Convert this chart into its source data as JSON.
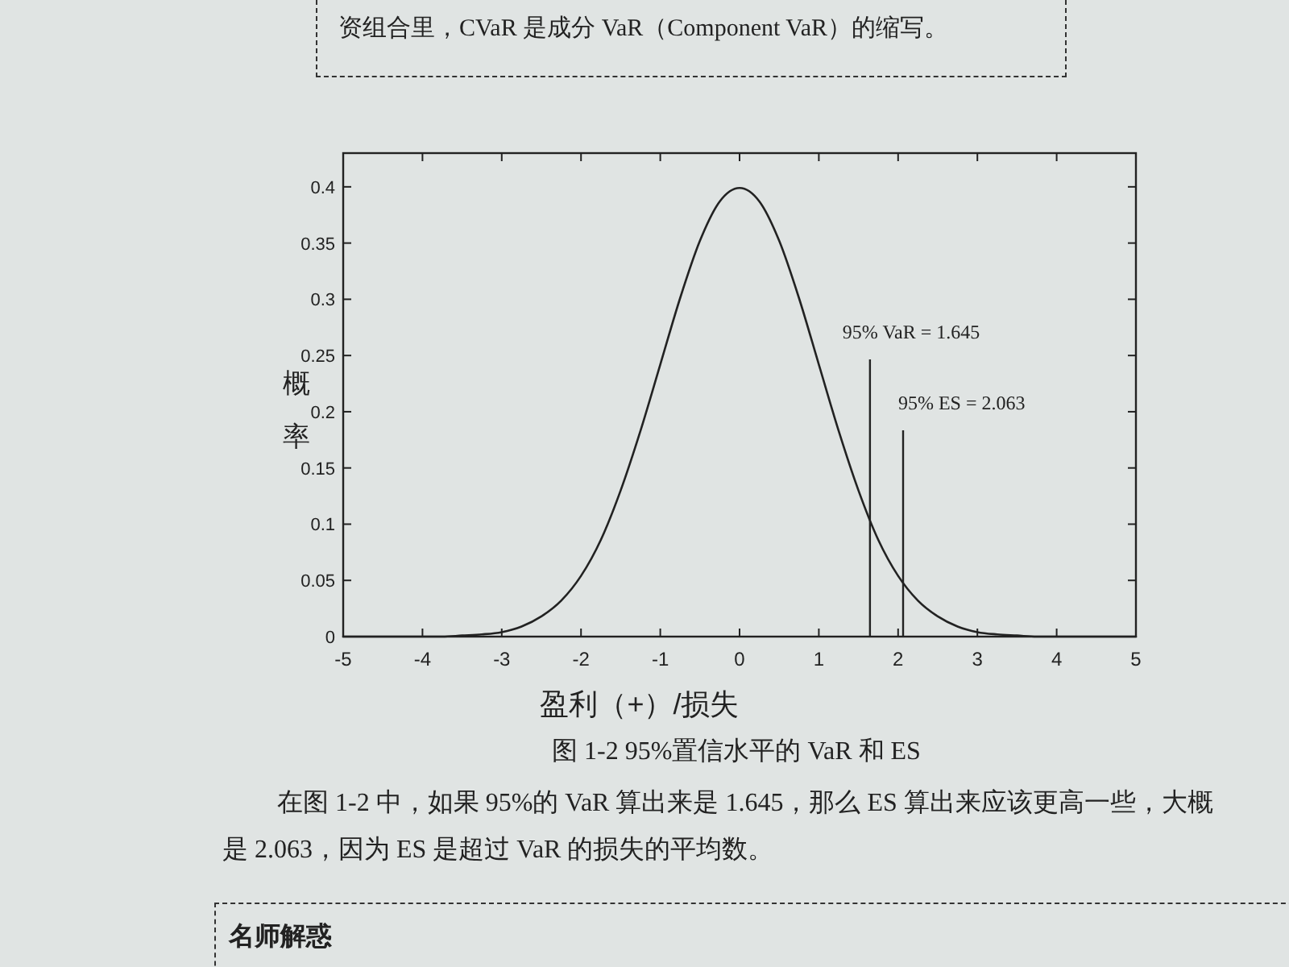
{
  "chart_data": {
    "type": "line",
    "title": "图 1-2 95%置信水平的 VaR 和 ES",
    "xlabel": "盈利（+）/损失",
    "ylabel": "概率",
    "series": [
      {
        "color": "#222222",
        "x": [
          -5,
          -4.75,
          -4.5,
          -4.25,
          -4,
          -3.75,
          -3.5,
          -3.25,
          -3,
          -2.75,
          -2.5,
          -2.25,
          -2,
          -1.75,
          -1.5,
          -1.25,
          -1,
          -0.75,
          -0.5,
          -0.25,
          0,
          0.25,
          0.5,
          0.75,
          1,
          1.25,
          1.5,
          1.75,
          2,
          2.25,
          2.5,
          2.75,
          3,
          3.25,
          3.5,
          3.75,
          4,
          4.25,
          4.5,
          4.75,
          5
        ],
        "values": [
          0,
          0,
          0,
          0,
          0,
          0,
          0.001,
          0.002,
          0.004,
          0.009,
          0.018,
          0.032,
          0.054,
          0.086,
          0.13,
          0.183,
          0.242,
          0.301,
          0.352,
          0.387,
          0.399,
          0.387,
          0.352,
          0.301,
          0.242,
          0.183,
          0.13,
          0.086,
          0.054,
          0.032,
          0.018,
          0.009,
          0.004,
          0.002,
          0.001,
          0,
          0,
          0,
          0,
          0,
          0
        ]
      }
    ],
    "xlim": [
      -5,
      5
    ],
    "xticks": [
      -5,
      -4,
      -3,
      -2,
      -1,
      0,
      1,
      2,
      3,
      4,
      5
    ],
    "ylim": [
      0,
      0.43
    ],
    "yticks": [
      0,
      0.05,
      0.1,
      0.15,
      0.2,
      0.25,
      0.3,
      0.35,
      0.4
    ],
    "ref_lines": [
      {
        "axis": "x",
        "value": 1.645,
        "label": "95% VaR = 1.645",
        "color": "#222222"
      },
      {
        "axis": "x",
        "value": 2.063,
        "label": "95% ES = 2.063",
        "color": "#222222"
      }
    ],
    "annotations": [
      "资组合里，CVaR 是成分 VaR（Component VaR）的缩写。",
      "在图 1-2 中，如果 95%的 VaR 算出来是 1.645，那么 ES 算出来应该更高一些，大概是 2.063，因为 ES 是超过 VaR 的损失的平均数。",
      "名师解惑"
    ]
  }
}
